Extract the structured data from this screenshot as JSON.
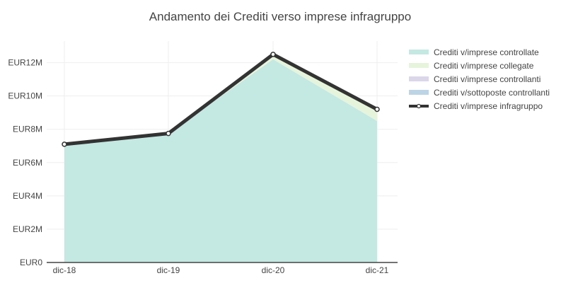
{
  "chart_data": {
    "type": "area",
    "title": "Andamento dei Crediti verso imprese infragruppo",
    "xlabel": "",
    "ylabel": "",
    "categories": [
      "dic-18",
      "dic-19",
      "dic-20",
      "dic-21"
    ],
    "ylim": [
      0,
      13300000
    ],
    "yticks": [
      0,
      2000000,
      4000000,
      6000000,
      8000000,
      10000000,
      12000000
    ],
    "ytick_labels": [
      "EUR0",
      "EUR2M",
      "EUR4M",
      "EUR6M",
      "EUR8M",
      "EUR10M",
      "EUR12M"
    ],
    "grid": true,
    "legend_position": "right",
    "stacked_series": [
      {
        "name": "Crediti v/imprese controllate",
        "color": "#c4e8e2",
        "values": [
          7100000,
          7750000,
          12200000,
          8500000
        ]
      },
      {
        "name": "Crediti v/imprese collegate",
        "color": "#e6f4dc",
        "values": [
          0,
          0,
          300000,
          700000
        ]
      },
      {
        "name": "Crediti v/imprese controllanti",
        "color": "#dcd6ea",
        "values": [
          0,
          0,
          0,
          0
        ]
      },
      {
        "name": "Crediti v/sottoposte controllanti",
        "color": "#bcd4e6",
        "values": [
          0,
          0,
          0,
          0
        ]
      }
    ],
    "total_series": {
      "name": "Crediti v/imprese infragruppo",
      "color": "#333333",
      "values": [
        7100000,
        7750000,
        12500000,
        9200000
      ]
    }
  }
}
